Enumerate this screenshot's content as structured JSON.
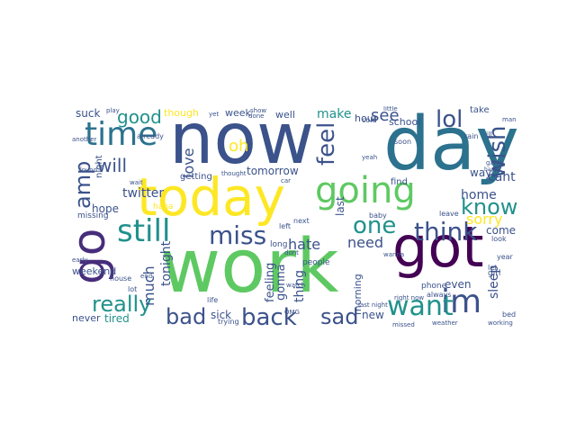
{
  "palette": {
    "purple": "#440154",
    "indigo": "#3b528b",
    "teal": "#21918c",
    "green": "#5ec962",
    "yellow": "#fde725",
    "blue": "#2c728e",
    "sea": "#27ad81",
    "violet": "#472d7b"
  },
  "words": {
    "work": "work",
    "now": "now",
    "day": "day",
    "today": "today",
    "got": "got",
    "go": "go",
    "going": "going",
    "time": "time",
    "still": "still",
    "miss": "miss",
    "feel": "feel",
    "think": "think",
    "one": "one",
    "know": "know",
    "im": "im",
    "want": "want",
    "back": "back",
    "bad": "bad",
    "sad": "sad",
    "really": "really",
    "lol": "lol",
    "good": "good",
    "amp": "amp",
    "wish": "wish",
    "oh": "oh",
    "love": "love",
    "will": "will",
    "see": "see",
    "make": "make",
    "home": "home",
    "sorry": "sorry",
    "need": "need",
    "hate": "hate",
    "much": "much",
    "twitter": "twitter",
    "hope": "hope",
    "tonight": "tonight",
    "tomorrow": "tomorrow",
    "feeling": "feeling",
    "thing": "thing",
    "gonna": "gonna",
    "last": "last",
    "sleep": "sleep",
    "even": "even",
    "come": "come",
    "cant": "cant",
    "way": "way",
    "new": "new",
    "morning": "morning",
    "tired": "tired",
    "sick": "sick",
    "never": "never",
    "weekend": "weekend",
    "suck": "suck",
    "though": "though",
    "week": "week",
    "well": "well",
    "hour": "hour",
    "school": "school",
    "getting": "getting",
    "haha": "haha",
    "long": "long",
    "people": "people",
    "missing": "missing",
    "phone": "phone",
    "always": "always",
    "night": "night",
    "back_s": "lol",
    "lol_small": "lot",
    "already": "already",
    "house": "house",
    "find": "find",
    "girl": "girl",
    "let": "let",
    "year": "year",
    "rain": "rain",
    "take": "take",
    "thought": "thought",
    "trying": "trying",
    "life": "life",
    "watch": "watch",
    "next": "next",
    "left": "left",
    "dont": "dont",
    "baby": "baby",
    "leave": "leave",
    "look": "look",
    "cold": "cold",
    "yeah": "yeah",
    "soon": "soon",
    "bed": "bed",
    "working": "working",
    "weather": "weather",
    "missed": "missed",
    "last_night": "last night",
    "right_now": "right now",
    "friend": "friend",
    "little": "little",
    "hurt": "hurt",
    "game": "game",
    "play": "play",
    "another": "another",
    "went": "went",
    "wait": "wait",
    "old": "old",
    "head": "head",
    "done": "done",
    "show": "show",
    "yet": "yet",
    "omg": "OMG",
    "cool": "cool",
    "happy": "happy",
    "man": "man",
    "high": "high",
    "early": "early",
    "call": "call",
    "ugh": "ugh",
    "read": "read",
    "car": "car",
    "something": "something",
    "guy": "guy",
    "anything": "anything",
    "end": "end",
    "found": "found",
    "pretty": "pretty",
    "sun": "sun",
    "cold2": "cold",
    "ill": "ill",
    "wanna": "wanna",
    "got_small": "got",
    "sleep_small": "sleep"
  }
}
